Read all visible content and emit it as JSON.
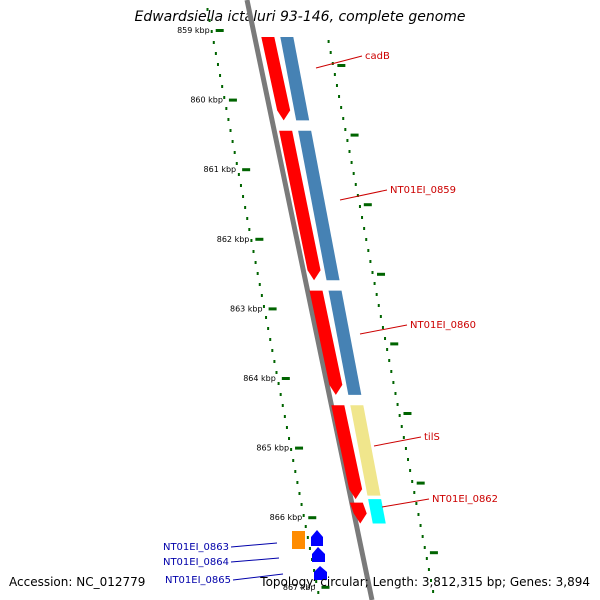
{
  "title": "Edwardsiella ictaluri 93-146, complete genome",
  "footer": {
    "accession_label": "Accession:",
    "accession": "NC_012779",
    "topology_label": "Topology:",
    "topology": "circular;",
    "length_label": "Length:",
    "length": "3,812,315 bp;",
    "genes_label": "Genes:",
    "genes": "3,894"
  },
  "ruler": {
    "unit": "kbp",
    "ticks": [
      "859 kbp",
      "860 kbp",
      "861 kbp",
      "862 kbp",
      "863 kbp",
      "864 kbp",
      "865 kbp",
      "866 kbp",
      "867 kbp"
    ]
  },
  "colors": {
    "cds": "#ff0000",
    "gene_blue": "#4682b4",
    "gene_khaki": "#f0e68c",
    "gene_cyan": "#00ffff",
    "gene_orange": "#ff8c00",
    "gene_navy": "#0000ff",
    "ruler_green": "#006400",
    "label_red": "#cc0000",
    "label_blue": "#0000aa"
  },
  "genes": [
    {
      "label": "cadB",
      "start_kbp": 859.1,
      "end_kbp": 860.3,
      "strand": "forward",
      "color": "#4682b4",
      "labelled": true
    },
    {
      "label": "NT01EI_0859",
      "start_kbp": 860.45,
      "end_kbp": 862.6,
      "strand": "forward",
      "color": "#4682b4",
      "labelled": true
    },
    {
      "label": "NT01EI_0860",
      "start_kbp": 862.75,
      "end_kbp": 864.25,
      "strand": "forward",
      "color": "#4682b4",
      "labelled": true
    },
    {
      "label": "tilS",
      "start_kbp": 864.4,
      "end_kbp": 865.7,
      "strand": "forward",
      "color": "#f0e68c",
      "labelled": true
    },
    {
      "label": "NT01EI_0862",
      "start_kbp": 865.75,
      "end_kbp": 866.1,
      "strand": "forward",
      "color": "#00ffff",
      "labelled": true
    },
    {
      "label": "NT01EI_0863",
      "start_kbp": 866.2,
      "end_kbp": 866.5,
      "strand": "reverse",
      "color": "#ff8c00",
      "labelled": true
    },
    {
      "label": "NT01EI_0864",
      "start_kbp": 866.2,
      "end_kbp": 866.4,
      "strand": "reverse",
      "color": "#0000ff",
      "labelled": true
    },
    {
      "label": "NT01EI_0865",
      "start_kbp": 866.45,
      "end_kbp": 866.65,
      "strand": "reverse",
      "color": "#0000ff",
      "labelled": true
    }
  ],
  "cds": [
    {
      "start_kbp": 859.1,
      "end_kbp": 860.3
    },
    {
      "start_kbp": 860.45,
      "end_kbp": 862.6
    },
    {
      "start_kbp": 862.75,
      "end_kbp": 864.25
    },
    {
      "start_kbp": 864.4,
      "end_kbp": 865.75
    },
    {
      "start_kbp": 865.8,
      "end_kbp": 866.1
    }
  ]
}
